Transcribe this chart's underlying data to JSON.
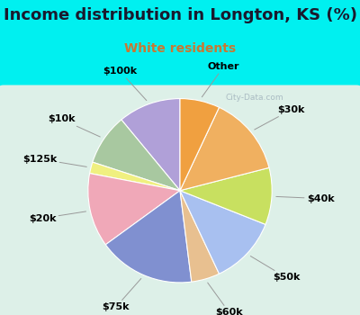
{
  "title": "Income distribution in Longton, KS (%)",
  "subtitle": "White residents",
  "title_color": "#1a1a2e",
  "subtitle_color": "#c87832",
  "bg_outer": "#00f0f0",
  "watermark": "City-Data.com",
  "labels": [
    "$100k",
    "$10k",
    "$125k",
    "$20k",
    "$75k",
    "$60k",
    "$50k",
    "$40k",
    "$30k",
    "Other"
  ],
  "values": [
    11,
    9,
    2,
    13,
    17,
    5,
    12,
    10,
    14,
    7
  ],
  "colors": [
    "#b0a0d8",
    "#a8c8a0",
    "#f0f080",
    "#f0a8b8",
    "#8090d0",
    "#e8c090",
    "#a8c0f0",
    "#c8e060",
    "#f0b060",
    "#f0a040"
  ],
  "startangle": 90,
  "label_fontsize": 8,
  "title_fontsize": 13,
  "subtitle_fontsize": 10
}
